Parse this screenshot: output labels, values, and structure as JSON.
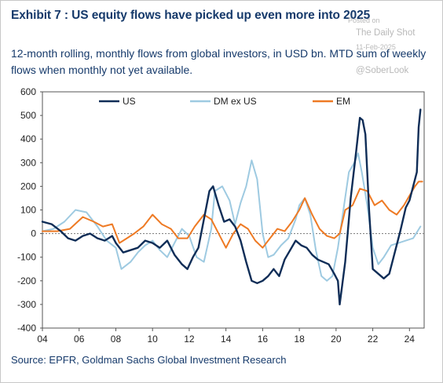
{
  "title": "Exhibit 7 : US equity flows have picked up even more into 2025",
  "subtitle": "12-month rolling, monthly flows from global investors, in USD bn. MTD sum of weekly flows when monthly not yet available.",
  "watermark": {
    "posted": "Posted on",
    "site": "The Daily Shot",
    "date": "11-Feb-2025",
    "handle": "@SoberLook"
  },
  "source": "Source: EPFR, Goldman Sachs Global Investment Research",
  "chart_data": {
    "type": "line",
    "x_label": "",
    "y_label": "",
    "xlim": [
      2004,
      2024.8
    ],
    "ylim": [
      -400,
      600
    ],
    "x_ticks": [
      {
        "value": 2004,
        "label": "04"
      },
      {
        "value": 2006,
        "label": "06"
      },
      {
        "value": 2008,
        "label": "08"
      },
      {
        "value": 2010,
        "label": "10"
      },
      {
        "value": 2012,
        "label": "12"
      },
      {
        "value": 2014,
        "label": "14"
      },
      {
        "value": 2016,
        "label": "16"
      },
      {
        "value": 2018,
        "label": "18"
      },
      {
        "value": 2020,
        "label": "20"
      },
      {
        "value": 2022,
        "label": "22"
      },
      {
        "value": 2024,
        "label": "24"
      }
    ],
    "y_ticks": [
      {
        "value": 600,
        "label": "600"
      },
      {
        "value": 500,
        "label": "500"
      },
      {
        "value": 400,
        "label": "400"
      },
      {
        "value": 300,
        "label": "300"
      },
      {
        "value": 200,
        "label": "200"
      },
      {
        "value": 100,
        "label": "100"
      },
      {
        "value": 0,
        "label": "0"
      },
      {
        "value": -100,
        "label": "-100"
      },
      {
        "value": -200,
        "label": "-200"
      },
      {
        "value": -300,
        "label": "-300"
      },
      {
        "value": -400,
        "label": "-400"
      }
    ],
    "grid": false,
    "legend_position": "top",
    "series": [
      {
        "name": "US",
        "color": "#0f2d57",
        "width": 2.4,
        "x": [
          2004.0,
          2004.5,
          2005.0,
          2005.4,
          2005.8,
          2006.2,
          2006.6,
          2007.0,
          2007.4,
          2007.8,
          2008.0,
          2008.4,
          2008.8,
          2009.2,
          2009.6,
          2010.0,
          2010.4,
          2010.8,
          2011.2,
          2011.6,
          2011.9,
          2012.2,
          2012.5,
          2012.8,
          2013.1,
          2013.3,
          2013.6,
          2013.9,
          2014.2,
          2014.5,
          2014.8,
          2015.1,
          2015.4,
          2015.7,
          2016.0,
          2016.3,
          2016.6,
          2016.9,
          2017.2,
          2017.5,
          2017.8,
          2018.1,
          2018.4,
          2018.7,
          2019.0,
          2019.3,
          2019.6,
          2019.9,
          2020.1,
          2020.2,
          2020.5,
          2020.8,
          2021.1,
          2021.3,
          2021.45,
          2021.6,
          2021.8,
          2022.0,
          2022.3,
          2022.6,
          2022.9,
          2023.2,
          2023.5,
          2023.8,
          2024.0,
          2024.2,
          2024.4,
          2024.5,
          2024.6
        ],
        "y": [
          50,
          40,
          10,
          -20,
          -30,
          -10,
          0,
          -20,
          -30,
          -10,
          -40,
          -80,
          -70,
          -60,
          -30,
          -40,
          -60,
          -30,
          -90,
          -130,
          -150,
          -100,
          -60,
          60,
          180,
          200,
          120,
          50,
          60,
          30,
          -30,
          -120,
          -200,
          -210,
          -200,
          -180,
          -150,
          -180,
          -110,
          -70,
          -30,
          -50,
          -60,
          -90,
          -110,
          -120,
          -130,
          -170,
          -200,
          -300,
          -120,
          150,
          350,
          490,
          480,
          420,
          100,
          -150,
          -170,
          -190,
          -170,
          -80,
          10,
          110,
          140,
          200,
          260,
          450,
          525
        ]
      },
      {
        "name": "DM ex US",
        "color": "#9ecae1",
        "width": 2.0,
        "x": [
          2004.0,
          2004.6,
          2005.2,
          2005.8,
          2006.4,
          2007.0,
          2007.5,
          2008.0,
          2008.3,
          2008.8,
          2009.2,
          2009.6,
          2010.0,
          2010.4,
          2010.8,
          2011.2,
          2011.6,
          2012.0,
          2012.4,
          2012.8,
          2013.2,
          2013.4,
          2013.8,
          2014.2,
          2014.5,
          2014.8,
          2015.1,
          2015.4,
          2015.7,
          2016.0,
          2016.3,
          2016.6,
          2017.0,
          2017.4,
          2017.8,
          2018.0,
          2018.3,
          2018.6,
          2018.9,
          2019.2,
          2019.5,
          2019.8,
          2020.1,
          2020.4,
          2020.7,
          2021.0,
          2021.2,
          2021.4,
          2021.7,
          2022.0,
          2022.3,
          2022.6,
          2023.0,
          2023.4,
          2023.8,
          2024.2,
          2024.6
        ],
        "y": [
          10,
          20,
          50,
          100,
          90,
          30,
          -30,
          -60,
          -150,
          -120,
          -80,
          -50,
          -30,
          -70,
          -100,
          -40,
          20,
          -10,
          -100,
          -120,
          20,
          180,
          200,
          140,
          40,
          130,
          200,
          310,
          230,
          0,
          -100,
          -90,
          -50,
          -20,
          60,
          120,
          150,
          80,
          -70,
          -180,
          -200,
          -180,
          -60,
          100,
          260,
          300,
          340,
          260,
          120,
          -60,
          -130,
          -100,
          -50,
          -40,
          -30,
          -20,
          30
        ]
      },
      {
        "name": "EM",
        "color": "#ee7a24",
        "width": 2.0,
        "x": [
          2004.0,
          2004.8,
          2005.5,
          2006.2,
          2006.8,
          2007.3,
          2007.8,
          2008.2,
          2008.6,
          2009.0,
          2009.5,
          2010.0,
          2010.5,
          2011.0,
          2011.4,
          2011.9,
          2012.3,
          2012.8,
          2013.2,
          2013.6,
          2014.0,
          2014.4,
          2014.8,
          2015.2,
          2015.6,
          2016.0,
          2016.4,
          2016.8,
          2017.2,
          2017.6,
          2018.0,
          2018.3,
          2018.7,
          2019.1,
          2019.5,
          2019.9,
          2020.2,
          2020.5,
          2020.9,
          2021.3,
          2021.7,
          2022.1,
          2022.5,
          2022.9,
          2023.3,
          2023.7,
          2024.0,
          2024.3,
          2024.5,
          2024.7
        ],
        "y": [
          10,
          10,
          20,
          70,
          50,
          30,
          40,
          -40,
          -20,
          0,
          30,
          80,
          40,
          20,
          -20,
          -20,
          30,
          80,
          60,
          0,
          -60,
          0,
          40,
          20,
          -30,
          -60,
          -20,
          20,
          10,
          50,
          100,
          150,
          80,
          20,
          -10,
          -20,
          0,
          100,
          120,
          190,
          180,
          120,
          140,
          100,
          80,
          120,
          160,
          200,
          220,
          220
        ]
      }
    ]
  }
}
